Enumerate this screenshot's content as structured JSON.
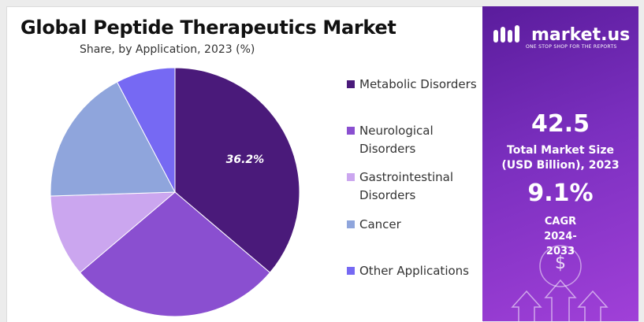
{
  "chart_data": {
    "type": "pie",
    "title": "Global Peptide Therapeutics Market",
    "subtitle": "Share, by Application, 2023 (%)",
    "categories": [
      "Metabolic Disorders",
      "Neurological Disorders",
      "Gastrointestinal Disorders",
      "Cancer",
      "Other Applications"
    ],
    "values": [
      36.2,
      27.6,
      10.7,
      17.8,
      7.7
    ],
    "value_labels": [
      "36.2%",
      null,
      null,
      null,
      null
    ],
    "colors": [
      "#4a1a7a",
      "#8a4fd0",
      "#cba6ef",
      "#8fa5dc",
      "#7669f3"
    ]
  },
  "panel": {
    "brand": "market.us",
    "tagline": "ONE STOP SHOP FOR THE REPORTS",
    "market_size": "42.5",
    "market_size_label": "Total Market Size (USD Billion), 2023",
    "cagr": "9.1%",
    "cagr_label": "CAGR 2024-2033",
    "icon": "$"
  }
}
